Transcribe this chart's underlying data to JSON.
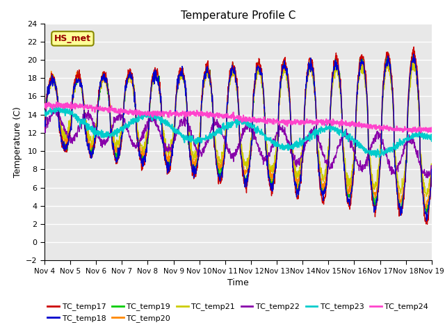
{
  "title": "Temperature Profile C",
  "xlabel": "Time",
  "ylabel": "Temperature (C)",
  "ylim": [
    -2,
    24
  ],
  "xlim": [
    0,
    15
  ],
  "x_ticks": [
    0,
    1,
    2,
    3,
    4,
    5,
    6,
    7,
    8,
    9,
    10,
    11,
    12,
    13,
    14,
    15
  ],
  "x_tick_labels": [
    "Nov 4",
    "Nov 5",
    "Nov 6",
    "Nov 7",
    "Nov 8",
    "Nov 9",
    "Nov 10",
    "Nov 11",
    "Nov 12",
    "Nov 13",
    "Nov 14",
    "Nov 15",
    "Nov 16",
    "Nov 17",
    "Nov 18",
    "Nov 19"
  ],
  "yticks": [
    -2,
    0,
    2,
    4,
    6,
    8,
    10,
    12,
    14,
    16,
    18,
    20,
    22,
    24
  ],
  "legend_label": "HS_met",
  "series_colors": {
    "TC_temp17": "#cc0000",
    "TC_temp18": "#0000cc",
    "TC_temp19": "#00cc00",
    "TC_temp20": "#ff8800",
    "TC_temp21": "#cccc00",
    "TC_temp22": "#8800aa",
    "TC_temp23": "#00cccc",
    "TC_temp24": "#ff44cc"
  },
  "background_color": "#e8e8e8",
  "grid_color": "#ffffff",
  "fig_bg": "#ffffff",
  "annotation_facecolor": "#ffff99",
  "annotation_edgecolor": "#888800",
  "annotation_textcolor": "#990000"
}
